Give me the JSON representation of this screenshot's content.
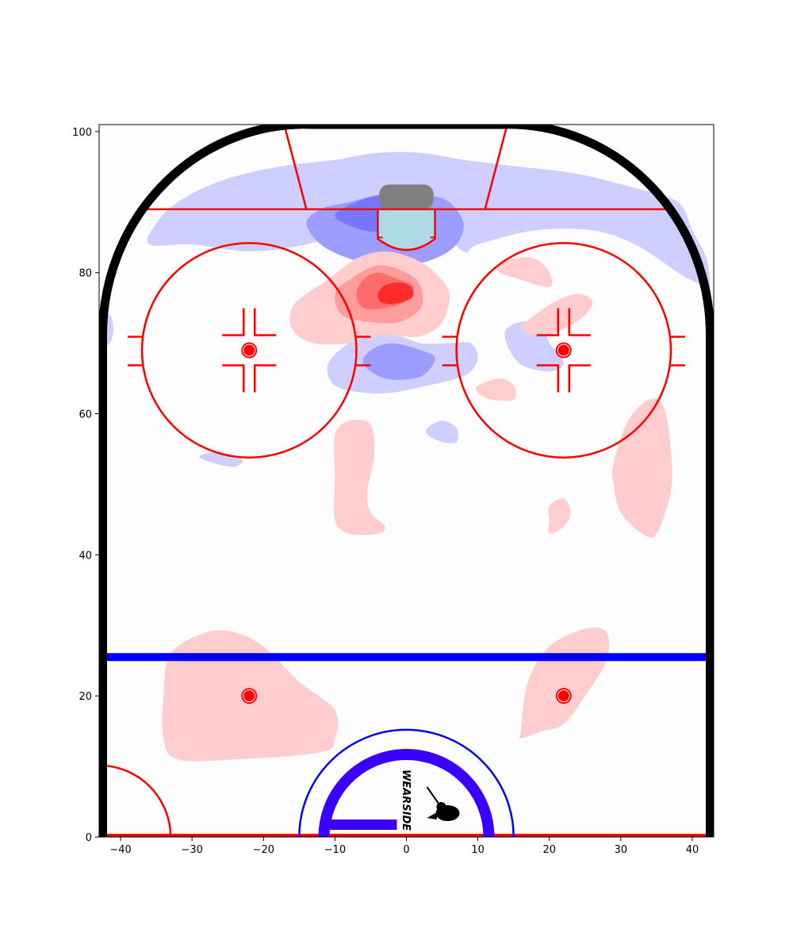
{
  "chart_data": {
    "type": "heatmap",
    "title": "",
    "xlabel": "",
    "ylabel": "",
    "xlim": [
      -43,
      43
    ],
    "ylim": [
      0,
      101
    ],
    "x_ticks": [
      -40,
      -30,
      -20,
      -10,
      0,
      10,
      20,
      30,
      40
    ],
    "y_ticks": [
      0,
      20,
      40,
      60,
      80,
      100
    ],
    "grid": false,
    "legend": "none",
    "colormap": "bwr (blue = below average, red = above average)",
    "colors": {
      "positive": [
        "#ffcdcd",
        "#ff9c9c",
        "#ff6a6a",
        "#ff2a2a"
      ],
      "negative": [
        "#cfcfff",
        "#9d9dff",
        "#7676ff"
      ],
      "rink_red": "#ff0000",
      "blue_line": "#0000ff",
      "boards": "#000000",
      "crease": "#add8e6",
      "net": "#808080",
      "center_ring": "#3a00ff"
    },
    "rink_markings": {
      "goal_line_y": 89,
      "blue_line_y": 25.5,
      "faceoff_circle_centers": [
        [
          -22,
          69
        ],
        [
          22,
          69
        ]
      ],
      "faceoff_circle_radius": 15,
      "neutral_zone_dots": [
        [
          -22,
          20
        ],
        [
          22,
          20
        ]
      ],
      "center_circle_radius": 15
    },
    "regions": [
      {
        "sign": "negative",
        "level": 1,
        "polygon": [
          [
            -36,
            84
          ],
          [
            -30,
            84
          ],
          [
            -22,
            83
          ],
          [
            -14,
            84
          ],
          [
            -8,
            86
          ],
          [
            -4,
            88
          ],
          [
            0,
            90
          ],
          [
            4,
            87
          ],
          [
            8,
            83
          ],
          [
            10,
            84
          ],
          [
            18,
            86
          ],
          [
            26,
            86
          ],
          [
            32,
            84
          ],
          [
            38,
            80
          ],
          [
            42,
            77
          ],
          [
            42,
            70
          ],
          [
            42.5,
            71
          ],
          [
            42.5,
            78
          ],
          [
            42,
            82
          ],
          [
            40,
            86
          ],
          [
            38,
            90
          ],
          [
            32,
            92
          ],
          [
            24,
            94
          ],
          [
            16,
            95
          ],
          [
            8,
            96
          ],
          [
            2,
            97
          ],
          [
            -4,
            97
          ],
          [
            -10,
            96
          ],
          [
            -18,
            95
          ],
          [
            -26,
            93
          ],
          [
            -32,
            90
          ],
          [
            -35,
            87
          ]
        ]
      },
      {
        "sign": "negative",
        "level": 2,
        "polygon": [
          [
            -14,
            87
          ],
          [
            -12,
            84
          ],
          [
            -8,
            82
          ],
          [
            -4,
            81
          ],
          [
            0,
            81
          ],
          [
            4,
            82
          ],
          [
            7,
            84
          ],
          [
            8,
            87
          ],
          [
            6,
            90
          ],
          [
            3,
            91
          ],
          [
            0,
            91
          ],
          [
            -4,
            91
          ],
          [
            -8,
            90
          ],
          [
            -12,
            89
          ]
        ]
      },
      {
        "sign": "negative",
        "level": 3,
        "polygon": [
          [
            -10,
            88
          ],
          [
            -6,
            86
          ],
          [
            -2,
            86
          ],
          [
            2,
            87
          ],
          [
            3,
            89
          ],
          [
            1,
            90
          ],
          [
            -3,
            91
          ],
          [
            -7,
            90
          ]
        ]
      },
      {
        "sign": "positive",
        "level": 1,
        "polygon": [
          [
            -16,
            72
          ],
          [
            -13,
            70
          ],
          [
            -8,
            70
          ],
          [
            -3,
            71
          ],
          [
            2,
            71
          ],
          [
            5,
            73
          ],
          [
            6,
            77
          ],
          [
            4,
            80
          ],
          [
            1,
            82
          ],
          [
            -3,
            83
          ],
          [
            -7,
            82
          ],
          [
            -11,
            79
          ],
          [
            -14,
            77
          ],
          [
            -16,
            75
          ]
        ]
      },
      {
        "sign": "positive",
        "level": 2,
        "polygon": [
          [
            -9,
            74
          ],
          [
            -5,
            73
          ],
          [
            -1,
            73
          ],
          [
            2,
            75
          ],
          [
            2,
            78
          ],
          [
            0,
            80
          ],
          [
            -4,
            81
          ],
          [
            -8,
            79
          ],
          [
            -10,
            77
          ]
        ]
      },
      {
        "sign": "positive",
        "level": 3,
        "polygon": [
          [
            -6,
            75
          ],
          [
            -3,
            75
          ],
          [
            0,
            76
          ],
          [
            1,
            78
          ],
          [
            -1,
            79
          ],
          [
            -4,
            80
          ],
          [
            -6,
            79
          ],
          [
            -7,
            77
          ]
        ]
      },
      {
        "sign": "positive",
        "level": 4,
        "polygon": [
          [
            -3.5,
            75.8
          ],
          [
            -1.5,
            75.6
          ],
          [
            0.8,
            76.5
          ],
          [
            0.6,
            78
          ],
          [
            -1,
            78.6
          ],
          [
            -3,
            78.2
          ],
          [
            -4,
            77
          ]
        ]
      },
      {
        "sign": "negative",
        "level": 1,
        "polygon": [
          [
            -11,
            67
          ],
          [
            -10,
            64
          ],
          [
            -6,
            63
          ],
          [
            -2,
            63
          ],
          [
            3,
            64
          ],
          [
            7,
            65
          ],
          [
            9,
            66
          ],
          [
            10,
            68
          ],
          [
            9,
            70
          ],
          [
            6,
            70
          ],
          [
            2,
            70
          ],
          [
            -1,
            71
          ],
          [
            -4,
            71
          ],
          [
            -8,
            70
          ]
        ]
      },
      {
        "sign": "negative",
        "level": 2,
        "polygon": [
          [
            -6,
            67
          ],
          [
            -3,
            65
          ],
          [
            1,
            65
          ],
          [
            3,
            66
          ],
          [
            4,
            68
          ],
          [
            2,
            69
          ],
          [
            -2,
            70
          ],
          [
            -5,
            69
          ]
        ]
      },
      {
        "sign": "negative",
        "level": 1,
        "polygon": [
          [
            14,
            70
          ],
          [
            16,
            67
          ],
          [
            20,
            66
          ],
          [
            22,
            67
          ],
          [
            21,
            69
          ],
          [
            20,
            70
          ],
          [
            19,
            73
          ],
          [
            16,
            73
          ],
          [
            14,
            72
          ]
        ]
      },
      {
        "sign": "positive",
        "level": 1,
        "polygon": [
          [
            13,
            80
          ],
          [
            16,
            79
          ],
          [
            20,
            78
          ],
          [
            20,
            80
          ],
          [
            18,
            82
          ],
          [
            15,
            82
          ],
          [
            13,
            81
          ]
        ]
      },
      {
        "sign": "positive",
        "level": 1,
        "polygon": [
          [
            16,
            72
          ],
          [
            19,
            71
          ],
          [
            22,
            72
          ],
          [
            25,
            74
          ],
          [
            26,
            76
          ],
          [
            24,
            77
          ],
          [
            21,
            76
          ],
          [
            18,
            74
          ]
        ]
      },
      {
        "sign": "positive",
        "level": 1,
        "polygon": [
          [
            10,
            63
          ],
          [
            12,
            62
          ],
          [
            15,
            62
          ],
          [
            15,
            64
          ],
          [
            13,
            65
          ],
          [
            10,
            64
          ]
        ]
      },
      {
        "sign": "negative",
        "level": 1,
        "polygon": [
          [
            3,
            57
          ],
          [
            5,
            56
          ],
          [
            7,
            56
          ],
          [
            7,
            58
          ],
          [
            5,
            59
          ],
          [
            3,
            58
          ]
        ]
      },
      {
        "sign": "negative",
        "level": 1,
        "polygon": [
          [
            -29,
            54
          ],
          [
            -27,
            53
          ],
          [
            -24,
            52.5
          ],
          [
            -23,
            53.5
          ],
          [
            -26,
            54.5
          ]
        ]
      },
      {
        "sign": "negative",
        "level": 1,
        "polygon": [
          [
            -42.5,
            73
          ],
          [
            -41.5,
            74
          ],
          [
            -41,
            72
          ],
          [
            -41.5,
            70
          ],
          [
            -42.5,
            70
          ]
        ]
      },
      {
        "sign": "positive",
        "level": 1,
        "polygon": [
          [
            -10,
            57
          ],
          [
            -8,
            59
          ],
          [
            -5,
            58.5
          ],
          [
            -4.5,
            54
          ],
          [
            -5.5,
            49
          ],
          [
            -5,
            46
          ],
          [
            -3,
            44
          ],
          [
            -4,
            43
          ],
          [
            -8,
            43
          ],
          [
            -10,
            45
          ],
          [
            -10,
            51
          ]
        ]
      },
      {
        "sign": "positive",
        "level": 1,
        "polygon": [
          [
            20,
            47
          ],
          [
            22,
            48
          ],
          [
            23,
            46
          ],
          [
            22,
            44
          ],
          [
            20,
            43
          ],
          [
            20,
            45
          ]
        ]
      },
      {
        "sign": "positive",
        "level": 1,
        "polygon": [
          [
            29,
            53
          ],
          [
            31,
            59
          ],
          [
            34,
            62
          ],
          [
            36,
            61
          ],
          [
            37,
            55
          ],
          [
            37,
            49
          ],
          [
            35,
            43
          ],
          [
            33,
            43
          ],
          [
            30,
            46
          ],
          [
            29,
            50
          ]
        ]
      },
      {
        "sign": "positive",
        "level": 1,
        "polygon": [
          [
            -34,
            20
          ],
          [
            -33,
            26
          ],
          [
            -28,
            29
          ],
          [
            -24,
            29
          ],
          [
            -20,
            27
          ],
          [
            -15,
            22
          ],
          [
            -10,
            18
          ],
          [
            -10,
            14
          ],
          [
            -12,
            12
          ],
          [
            -24,
            11
          ],
          [
            -32,
            11
          ],
          [
            -34,
            14
          ]
        ]
      },
      {
        "sign": "positive",
        "level": 1,
        "polygon": [
          [
            16,
            15
          ],
          [
            17,
            22
          ],
          [
            20,
            27
          ],
          [
            25,
            29.5
          ],
          [
            28,
            29
          ],
          [
            28,
            25
          ],
          [
            25,
            20
          ],
          [
            22,
            16
          ],
          [
            19,
            15
          ],
          [
            16,
            14
          ]
        ]
      }
    ]
  },
  "logo": {
    "text": "WEARSIDE"
  }
}
